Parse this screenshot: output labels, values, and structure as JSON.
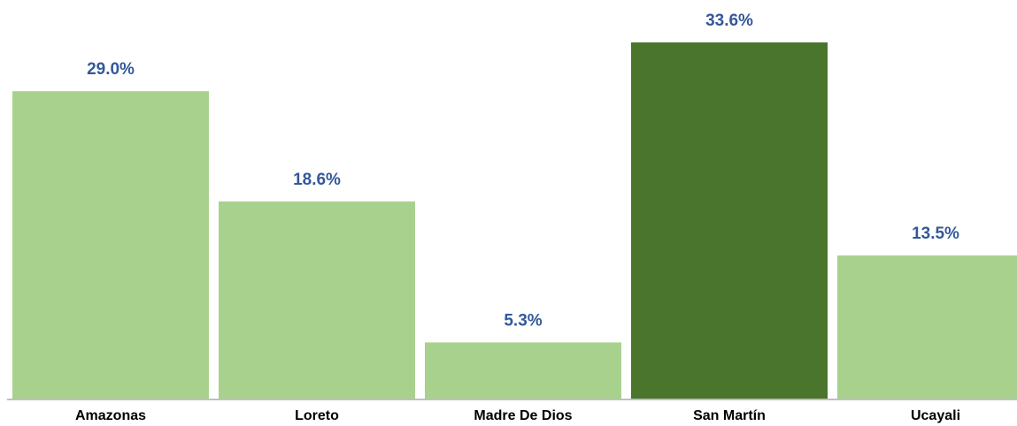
{
  "chart_data": {
    "type": "bar",
    "categories": [
      "Amazonas",
      "Loreto",
      "Madre De Dios",
      "San Martín",
      "Ucayali"
    ],
    "values": [
      29.0,
      18.6,
      5.3,
      33.6,
      13.5
    ],
    "value_labels": [
      "29.0%",
      "18.6%",
      "5.3%",
      "33.6%",
      "13.5%"
    ],
    "colors": [
      "#a9d18e",
      "#a9d18e",
      "#a9d18e",
      "#4a752c",
      "#a9d18e"
    ]
  }
}
